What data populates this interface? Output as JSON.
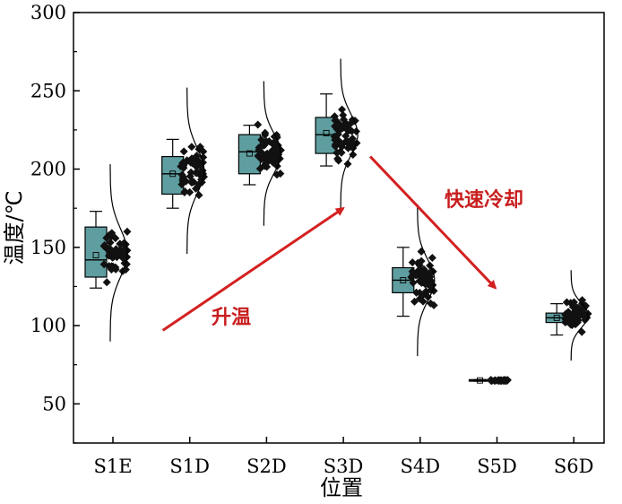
{
  "chart_data": {
    "type": "box",
    "xlabel": "位置",
    "ylabel": "温度/℃",
    "ylim": [
      25,
      300
    ],
    "yticks": [
      50,
      100,
      150,
      200,
      250,
      300
    ],
    "grid": false,
    "categories": [
      "S1E",
      "S1D",
      "S2D",
      "S3D",
      "S4D",
      "S5D",
      "S6D"
    ],
    "series": [
      {
        "whisker_low": 124,
        "q1": 131,
        "median": 142,
        "q3": 163,
        "whisker_high": 173,
        "mean": 145,
        "points_min": 122,
        "points_max": 171
      },
      {
        "whisker_low": 175,
        "q1": 184,
        "median": 197,
        "q3": 208,
        "whisker_high": 219,
        "mean": 197,
        "points_min": 176,
        "points_max": 222
      },
      {
        "whisker_low": 190,
        "q1": 197,
        "median": 211,
        "q3": 222,
        "whisker_high": 228,
        "mean": 210,
        "points_min": 190,
        "points_max": 230
      },
      {
        "whisker_low": 202,
        "q1": 210,
        "median": 222,
        "q3": 233,
        "whisker_high": 248,
        "mean": 223,
        "points_min": 201,
        "points_max": 243
      },
      {
        "whisker_low": 106,
        "q1": 121,
        "median": 129,
        "q3": 137,
        "whisker_high": 150,
        "mean": 129,
        "points_min": 108,
        "points_max": 150
      },
      {
        "whisker_low": 64.5,
        "q1": 64.5,
        "median": 65,
        "q3": 65.5,
        "whisker_high": 65.5,
        "mean": 65,
        "points_min": 64.5,
        "points_max": 65.5
      },
      {
        "whisker_low": 94,
        "q1": 102,
        "median": 105,
        "q3": 108,
        "whisker_high": 114,
        "mean": 105,
        "points_min": 94,
        "points_max": 119
      }
    ],
    "annotations": [
      {
        "text": "升温",
        "from": {
          "category": 0.65,
          "value": 97
        },
        "to": {
          "category": 3,
          "value": 175
        }
      },
      {
        "text": "快速冷却",
        "from": {
          "category": 3.35,
          "value": 208
        },
        "to": {
          "category": 4.98,
          "value": 124
        }
      }
    ]
  },
  "colors": {
    "box_fill": "#5f9ea0",
    "arrow": "#d42020",
    "annotation_text": "#c81e1e"
  }
}
